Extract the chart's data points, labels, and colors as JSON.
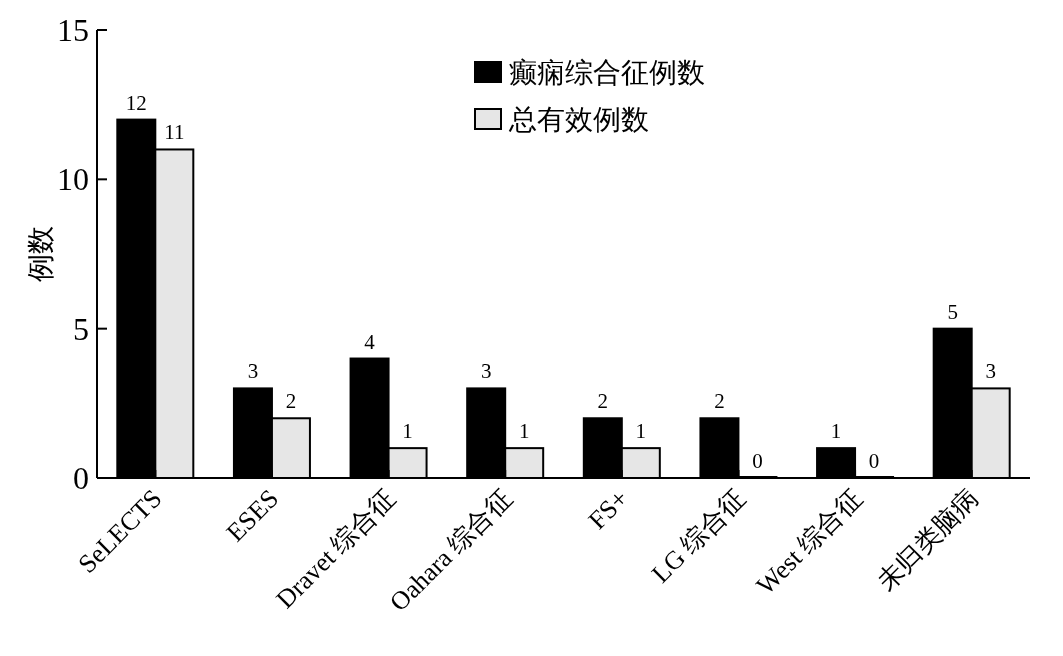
{
  "chart_data": {
    "type": "bar",
    "ylabel": "例数",
    "categories": [
      "SeLECTS",
      "ESES",
      "Dravet 综合征",
      "Oahara 综合征",
      "FS+",
      "LG 综合征",
      "West 综合征",
      "未归类脑病"
    ],
    "series": [
      {
        "name": "癫痫综合征例数",
        "color": "#000000",
        "values": [
          12,
          3,
          4,
          3,
          2,
          2,
          1,
          5
        ]
      },
      {
        "name": "总有效例数",
        "color": "#e6e6e6",
        "values": [
          11,
          2,
          1,
          1,
          1,
          0,
          0,
          3
        ]
      }
    ],
    "ylim": [
      0,
      15
    ],
    "yticks": [
      0,
      5,
      10,
      15
    ],
    "data_labels": true,
    "legend": "top right",
    "grid": false
  }
}
